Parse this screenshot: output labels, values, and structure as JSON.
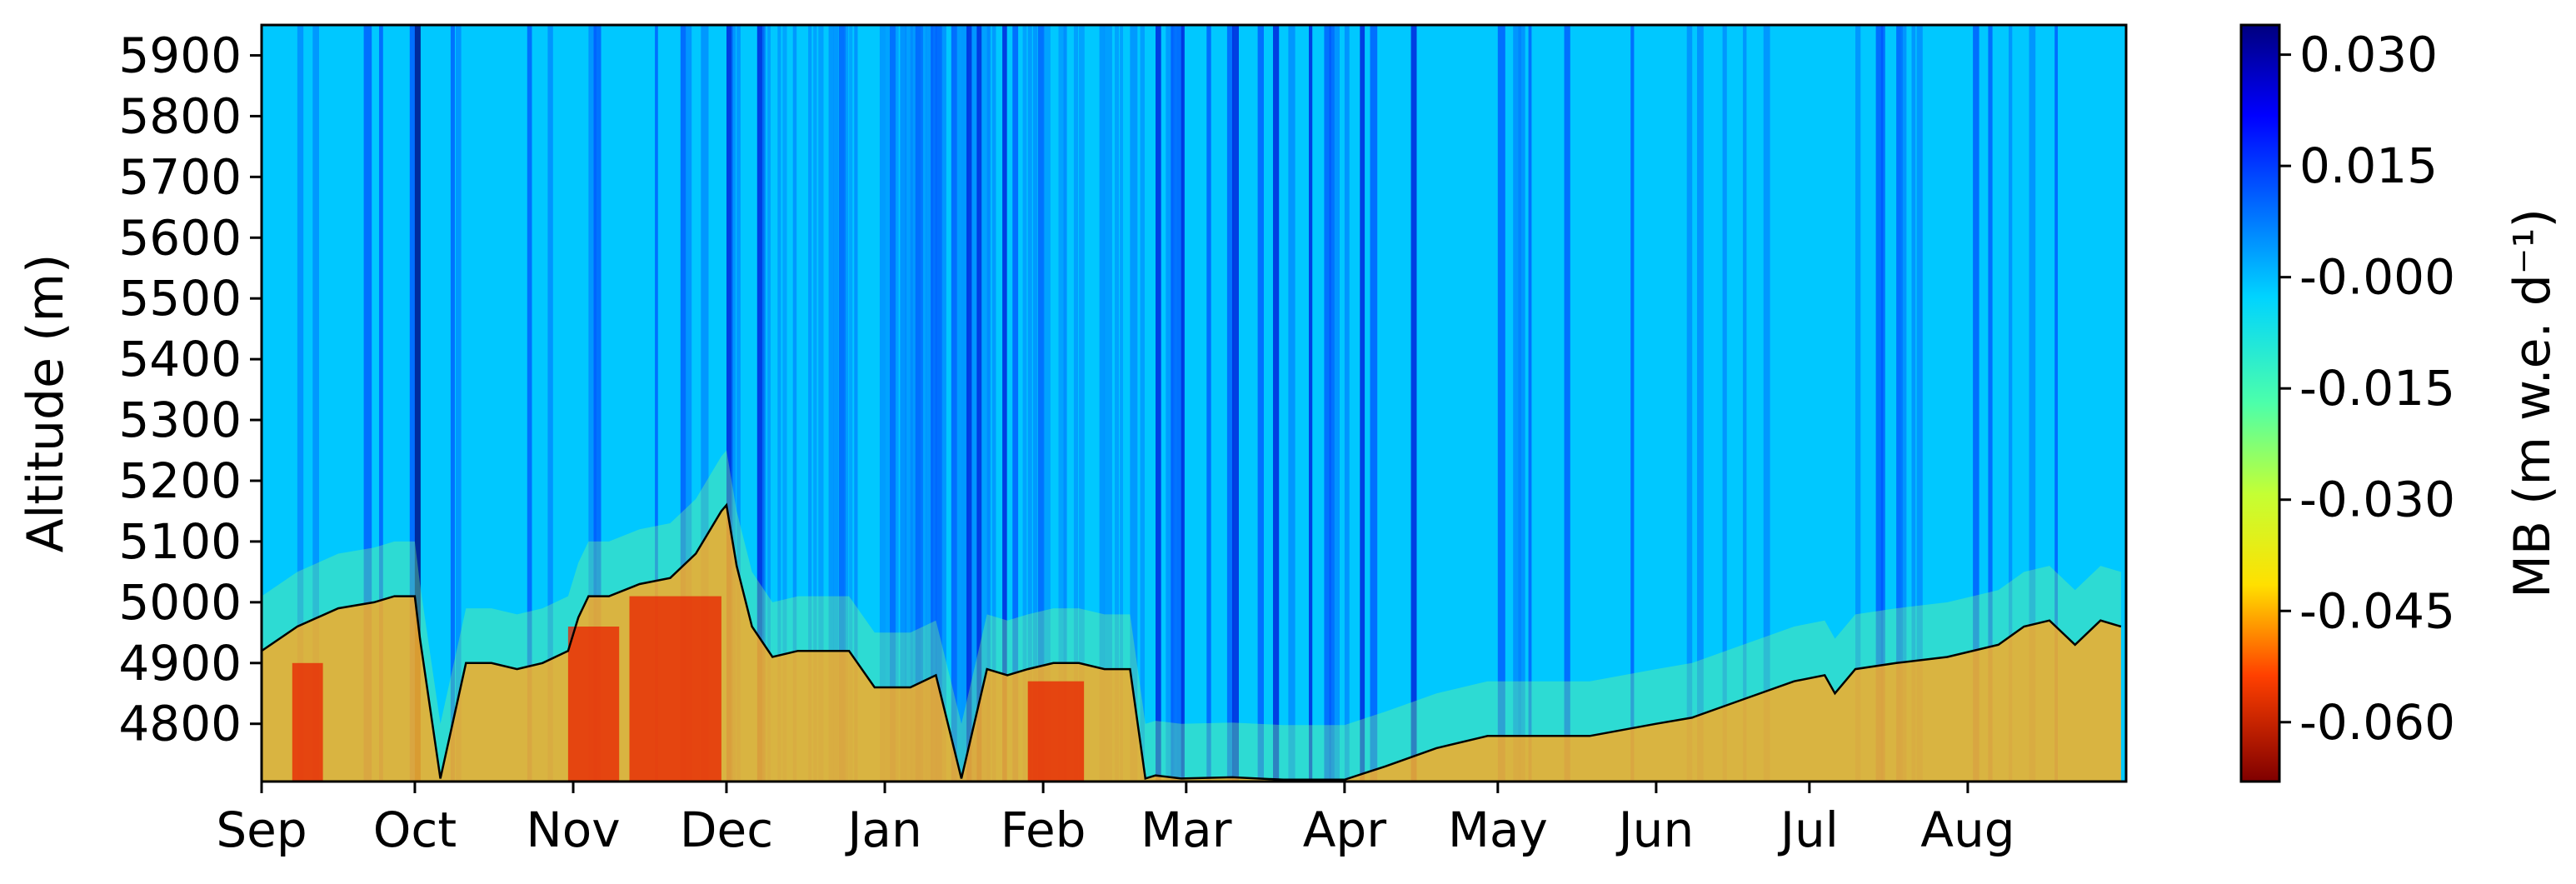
{
  "chart_data": {
    "type": "heatmap",
    "title": "",
    "xlabel": "",
    "ylabel": "Altitude (m)",
    "x_tick_labels": [
      "Sep",
      "Oct",
      "Nov",
      "Dec",
      "Jan",
      "Feb",
      "Mar",
      "Apr",
      "May",
      "Jun",
      "Jul",
      "Aug"
    ],
    "x_tick_day_index": [
      0,
      30,
      61,
      91,
      122,
      153,
      181,
      212,
      242,
      273,
      303,
      334
    ],
    "x_days": 365,
    "y_ticks": [
      4800,
      4900,
      5000,
      5100,
      5200,
      5300,
      5400,
      5500,
      5600,
      5700,
      5800,
      5900
    ],
    "ylim": [
      4705,
      5950
    ],
    "colorbar": {
      "label": "MB (m w.e. d⁻¹)",
      "ticks": [
        0.03,
        0.015,
        -0.0,
        -0.015,
        -0.03,
        -0.045,
        -0.06
      ],
      "tick_labels": [
        "0.030",
        "0.015",
        "-0.000",
        "-0.015",
        "-0.030",
        "-0.045",
        "-0.060"
      ],
      "range": [
        -0.068,
        0.034
      ],
      "colormap": "jet"
    },
    "snowline": {
      "description": "black line",
      "day_index": [
        0,
        7,
        15,
        22,
        26,
        30,
        31,
        35,
        40,
        45,
        50,
        55,
        60,
        62,
        64,
        68,
        74,
        80,
        85,
        90,
        91,
        93,
        96,
        100,
        105,
        110,
        115,
        120,
        122,
        127,
        132,
        137,
        142,
        146,
        150,
        155,
        160,
        165,
        170,
        173,
        175,
        180,
        190,
        200,
        212,
        220,
        230,
        240,
        250,
        260,
        273,
        280,
        290,
        300,
        306,
        308,
        312,
        320,
        330,
        340,
        345,
        350,
        355,
        360,
        364
      ],
      "altitude": [
        4920,
        4960,
        4990,
        5000,
        5010,
        5010,
        4940,
        4710,
        4900,
        4900,
        4890,
        4900,
        4920,
        4975,
        5010,
        5010,
        5030,
        5040,
        5080,
        5150,
        5160,
        5060,
        4960,
        4910,
        4920,
        4920,
        4920,
        4860,
        4860,
        4860,
        4880,
        4710,
        4890,
        4880,
        4890,
        4900,
        4900,
        4890,
        4890,
        4710,
        4715,
        4710,
        4712,
        4708,
        4708,
        4730,
        4760,
        4780,
        4780,
        4780,
        4800,
        4810,
        4840,
        4870,
        4880,
        4850,
        4890,
        4900,
        4910,
        4930,
        4960,
        4970,
        4930,
        4970,
        4960
      ]
    }
  }
}
